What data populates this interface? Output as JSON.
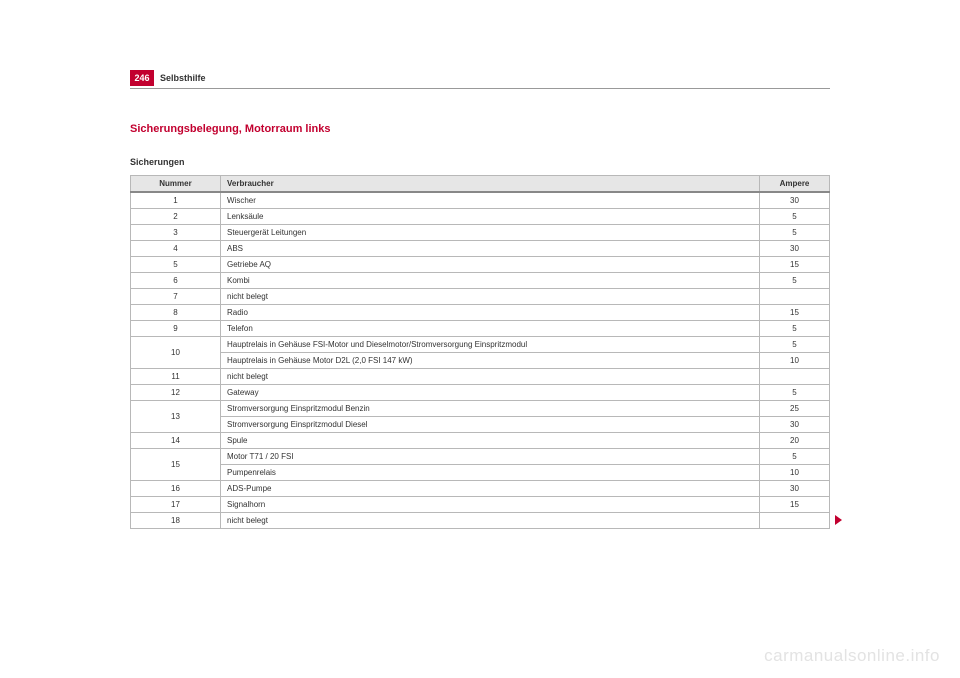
{
  "page_number": "246",
  "chapter": "Selbsthilfe",
  "section_title": "Sicherungsbelegung, Motorraum links",
  "sub_title": "Sicherungen",
  "watermark": "carmanualsonline.info",
  "table": {
    "headers": {
      "num": "Nummer",
      "verbraucher": "Verbraucher",
      "ampere": "Ampere"
    },
    "rows": [
      {
        "num": "1",
        "verbraucher": "Wischer",
        "ampere": "30"
      },
      {
        "num": "2",
        "verbraucher": "Lenksäule",
        "ampere": "5"
      },
      {
        "num": "3",
        "verbraucher": "Steuergerät Leitungen",
        "ampere": "5"
      },
      {
        "num": "4",
        "verbraucher": "ABS",
        "ampere": "30"
      },
      {
        "num": "5",
        "verbraucher": "Getriebe AQ",
        "ampere": "15"
      },
      {
        "num": "6",
        "verbraucher": "Kombi",
        "ampere": "5"
      },
      {
        "num": "7",
        "verbraucher": "nicht belegt",
        "ampere": ""
      },
      {
        "num": "8",
        "verbraucher": "Radio",
        "ampere": "15"
      },
      {
        "num": "9",
        "verbraucher": "Telefon",
        "ampere": "5"
      },
      {
        "num": "10",
        "rowspan": 2,
        "verbraucher": "Hauptrelais in Gehäuse FSI-Motor und Dieselmotor/Stromversorgung Einspritzmodul",
        "ampere": "5"
      },
      {
        "sub": true,
        "verbraucher": "Hauptrelais in Gehäuse Motor D2L (2,0 FSI 147 kW)",
        "ampere": "10"
      },
      {
        "num": "11",
        "verbraucher": "nicht belegt",
        "ampere": ""
      },
      {
        "num": "12",
        "verbraucher": "Gateway",
        "ampere": "5"
      },
      {
        "num": "13",
        "rowspan": 2,
        "verbraucher": "Stromversorgung Einspritzmodul Benzin",
        "ampere": "25"
      },
      {
        "sub": true,
        "verbraucher": "Stromversorgung Einspritzmodul Diesel",
        "ampere": "30"
      },
      {
        "num": "14",
        "verbraucher": "Spule",
        "ampere": "20"
      },
      {
        "num": "15",
        "rowspan": 2,
        "verbraucher": "Motor T71 / 20 FSI",
        "ampere": "5"
      },
      {
        "sub": true,
        "verbraucher": "Pumpenrelais",
        "ampere": "10"
      },
      {
        "num": "16",
        "verbraucher": "ADS-Pumpe",
        "ampere": "30"
      },
      {
        "num": "17",
        "verbraucher": "Signalhorn",
        "ampere": "15"
      },
      {
        "num": "18",
        "verbraucher": "nicht belegt",
        "ampere": ""
      }
    ]
  }
}
